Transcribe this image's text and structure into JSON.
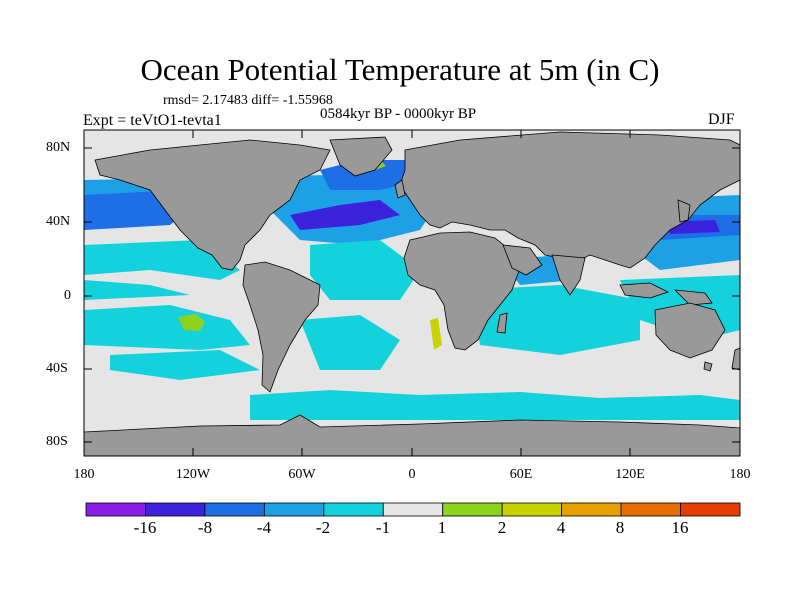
{
  "figure": {
    "title": "Ocean Potential Temperature at 5m (in C)",
    "stats_line": "rmsd= 2.17483  diff= -1.55968",
    "period_label": "0584kyr BP - 0000kyr BP",
    "experiment_label": "Expt = teVtO1-tevta1",
    "season_label": "DJF"
  },
  "map": {
    "projection": "cylindrical equidistant",
    "lon_range": [
      -180,
      180
    ],
    "lat_range": [
      -90,
      90
    ],
    "lat_ticks": [
      "80N",
      "40N",
      "0",
      "40S",
      "80S"
    ],
    "lon_ticks": [
      "180",
      "120W",
      "60W",
      "0",
      "60E",
      "120E",
      "180"
    ],
    "land_color": "#999999",
    "no_data_color": "#e5e5e5"
  },
  "colorbar": {
    "labels": [
      "-16",
      "-8",
      "-4",
      "-2",
      "-1",
      "1",
      "2",
      "4",
      "8",
      "16"
    ],
    "colors": [
      "#8b1ee6",
      "#3c22dc",
      "#1e6ee6",
      "#1ea0e6",
      "#14d2dc",
      "#e5e5e5",
      "#8cd21e",
      "#c8d200",
      "#e6a000",
      "#e66e00",
      "#e63c00"
    ]
  }
}
